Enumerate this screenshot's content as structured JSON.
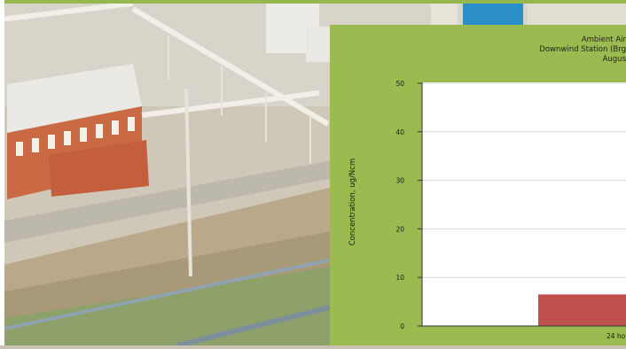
{
  "chart_data": {
    "type": "bar",
    "title_lines": [
      "Ambient Air",
      "Downwind Station (Brg",
      "Augus"
    ],
    "ylabel": "Concentration, ug/Ncm",
    "xlabel": "",
    "ylim": [
      0,
      50
    ],
    "yticks": [
      0,
      10,
      20,
      30,
      40,
      50
    ],
    "grid": true,
    "categories": [
      "24 ho"
    ],
    "values": [
      6.5
    ],
    "colors": {
      "bar": "#c0504d",
      "panel": "#9bba50",
      "plot": "#ffffff"
    }
  }
}
